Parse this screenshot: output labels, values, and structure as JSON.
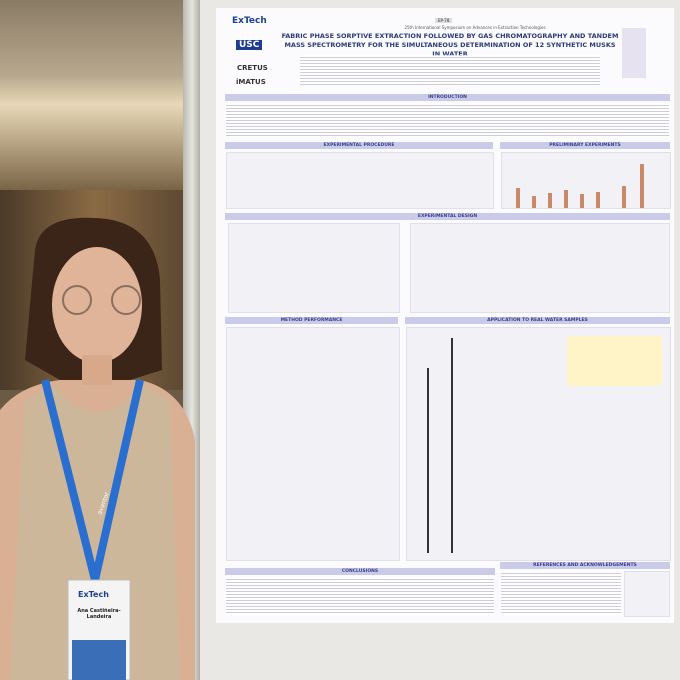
{
  "poster": {
    "code": "EP-78",
    "conference": "25th International Symposium on Advances in Extraction Technologies",
    "title": "FABRIC PHASE SORPTIVE EXTRACTION FOLLOWED BY GAS CHROMATOGRAPHY AND TANDEM MASS SPECTROMETRY FOR THE SIMULTANEOUS DETERMINATION OF 12 SYNTHETIC MUSKS IN WATER",
    "logos": [
      "ExTech",
      "USC",
      "CRETUS",
      "iMATUS"
    ],
    "sections": [
      "INTRODUCTION",
      "EXPERIMENTAL PROCEDURE",
      "PRELIMINARY EXPERIMENTS",
      "EXPERIMENTAL DESIGN",
      "METHOD PERFORMANCE",
      "APPLICATION TO REAL WATER SAMPLES",
      "CONCLUSIONS",
      "REFERENCES AND ACKNOWLEDGEMENTS"
    ]
  },
  "badge": {
    "event": "ExTech",
    "name": "Ana Castiñeira-Landeira",
    "lanyard": "avantor"
  }
}
